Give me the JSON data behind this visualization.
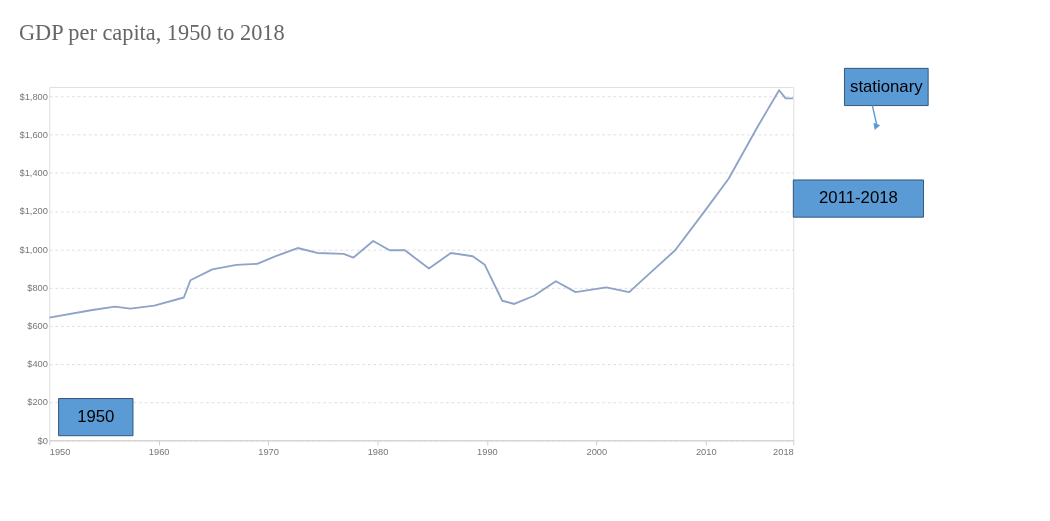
{
  "chart_data": {
    "type": "line",
    "title": "GDP per capita, 1950 to 2018",
    "x": [
      1950,
      1953.8,
      1956,
      1957.4,
      1959.6,
      1962.3,
      1962.9,
      1964.9,
      1967.1,
      1969,
      1970.7,
      1972.7,
      1974.5,
      1976.9,
      1977.8,
      1979.6,
      1981.1,
      1982.5,
      1984.7,
      1986.7,
      1988.7,
      1989.8,
      1991.4,
      1992.5,
      1994.3,
      1996.3,
      1998.1,
      2000.9,
      2003,
      2005,
      2007.2,
      2009.9,
      2012.1,
      2014.8,
      2016.7,
      2017.3,
      2018
    ],
    "series": [
      {
        "color": "#8fa3c8",
        "values": [
          643,
          681,
          700,
          690,
          705,
          748,
          838,
          895,
          919,
          924,
          964,
          1007,
          981,
          976,
          957,
          1044,
          995,
          995,
          900,
          981,
          964,
          919,
          731,
          714,
          757,
          833,
          776,
          801,
          776,
          881,
          995,
          1200,
          1371,
          1648,
          1833,
          1790,
          1790
        ]
      }
    ],
    "xlim": [
      1950,
      2018
    ],
    "xticks": [
      1950,
      1960,
      1970,
      1980,
      1990,
      2000,
      2010,
      2018
    ],
    "ylim": [
      0,
      1850
    ],
    "yticks": [
      {
        "value": 0,
        "label": "$0"
      },
      {
        "value": 200,
        "label": "$200"
      },
      {
        "value": 400,
        "label": "$400"
      },
      {
        "value": 600,
        "label": "$600"
      },
      {
        "value": 800,
        "label": "$800"
      },
      {
        "value": 1000,
        "label": "$1,000"
      },
      {
        "value": 1200,
        "label": "$1,200"
      },
      {
        "value": 1400,
        "label": "$1,400"
      },
      {
        "value": 1600,
        "label": "$1,600"
      },
      {
        "value": 1800,
        "label": "$1,800"
      }
    ],
    "grid": "y",
    "marker": "none",
    "line_style": "solid",
    "annotations": [
      "1950",
      "stationary",
      "2011-2018"
    ]
  }
}
